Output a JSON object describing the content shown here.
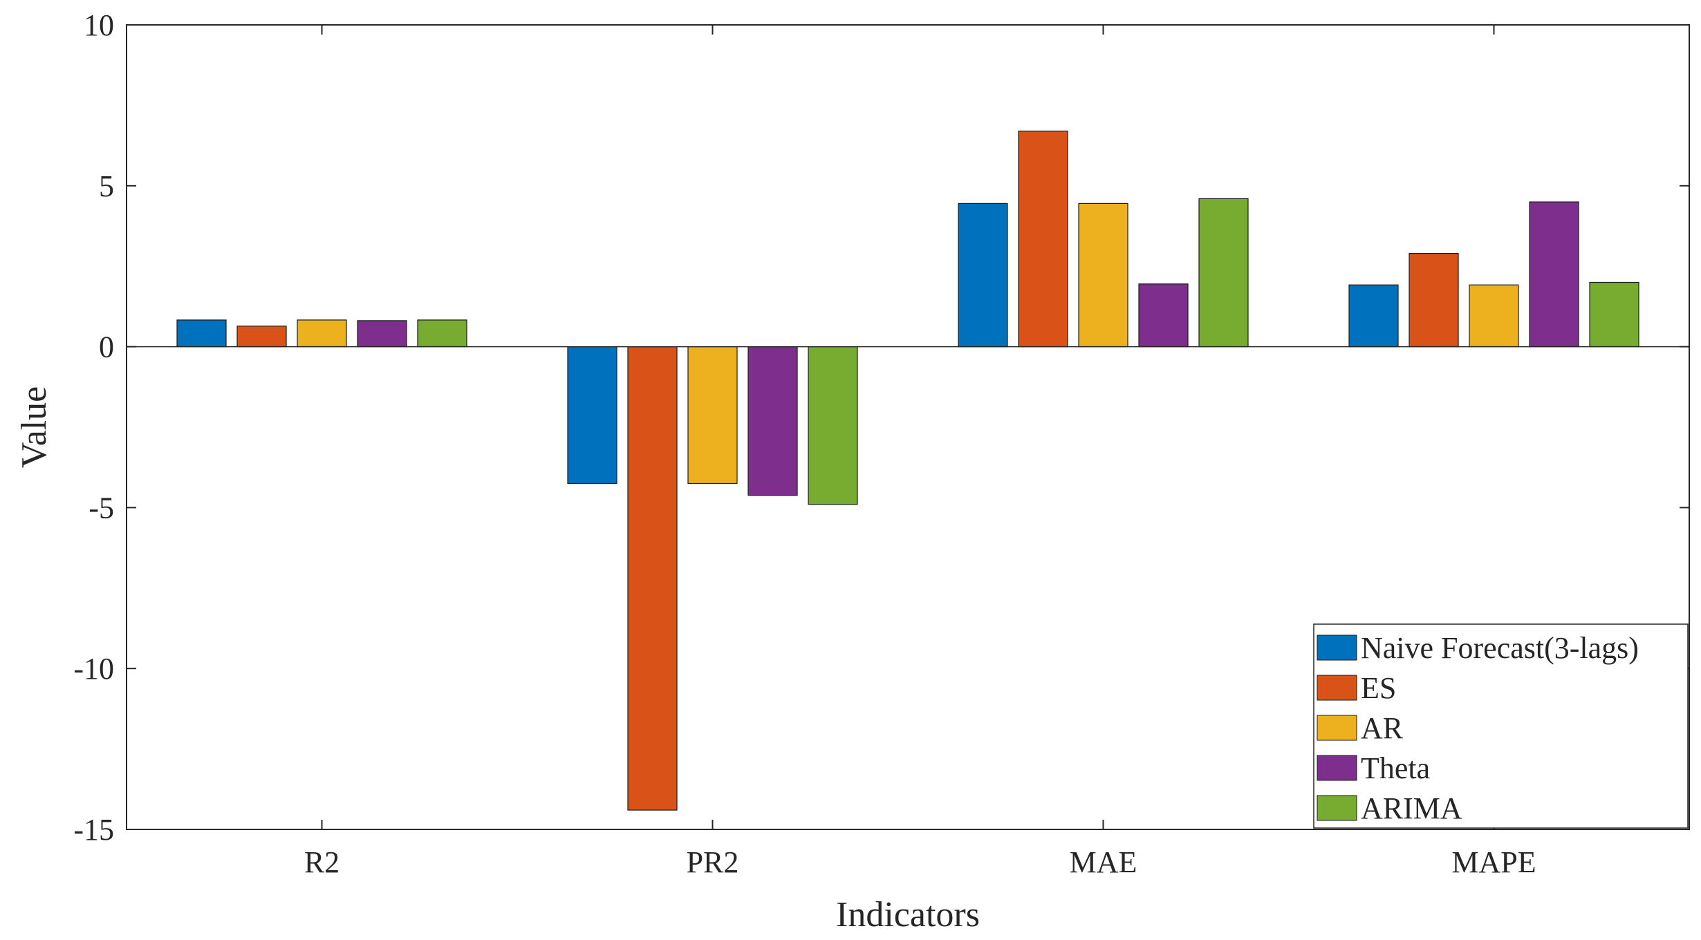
{
  "chart_data": {
    "type": "bar",
    "title": "",
    "xlabel": "Indicators",
    "ylabel": "Value",
    "ylim": [
      -15,
      10
    ],
    "yticks": [
      -15,
      -10,
      -5,
      0,
      5,
      10
    ],
    "ytick_labels": [
      "-15",
      "-10",
      "-5",
      "0",
      "5",
      "10"
    ],
    "categories": [
      "R2",
      "PR2",
      "MAE",
      "MAPE"
    ],
    "grid": false,
    "legend_position": "bottom-right",
    "series": [
      {
        "name": "Naive Forecast(3-lags)",
        "color": "#0072BD",
        "values": [
          0.83,
          -4.25,
          4.45,
          1.92
        ]
      },
      {
        "name": "ES",
        "color": "#D95319",
        "values": [
          0.64,
          -14.4,
          6.7,
          2.9
        ]
      },
      {
        "name": "AR",
        "color": "#EDB120",
        "values": [
          0.83,
          -4.25,
          4.45,
          1.92
        ]
      },
      {
        "name": "Theta",
        "color": "#7E2F8E",
        "values": [
          0.81,
          -4.62,
          1.95,
          4.5
        ]
      },
      {
        "name": "ARIMA",
        "color": "#77AC30",
        "values": [
          0.83,
          -4.9,
          4.6,
          2.0
        ]
      }
    ]
  }
}
